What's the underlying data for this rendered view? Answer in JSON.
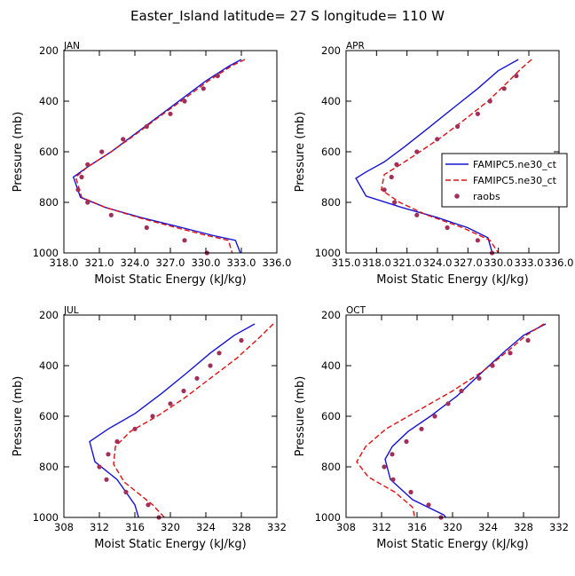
{
  "title": "Easter_Island  latitude= 27 S longitude= 110 W",
  "colors": {
    "model1": "#1414d2",
    "model2": "#e01010",
    "obs": "#a0305a",
    "axis": "#000000"
  },
  "legend": {
    "panel": "APR",
    "entries": [
      {
        "label": "FAMIPC5.ne30_ct",
        "style": "solid",
        "color": "#1414d2"
      },
      {
        "label": "FAMIPC5.ne30_ct",
        "style": "dashed",
        "color": "#e01010"
      },
      {
        "label": "raobs",
        "style": "dot",
        "color": "#a0305a"
      }
    ]
  },
  "chart_data": [
    {
      "type": "line",
      "panel": "JAN",
      "xlabel": "Moist Static Energy (kJ/kg)",
      "ylabel": "Pressure (mb)",
      "xlim": [
        318,
        336
      ],
      "ylim": [
        1000,
        200
      ],
      "xticks": [
        318,
        321,
        324,
        327,
        330,
        333,
        336
      ],
      "xtick_labels": [
        "318.0",
        "321.0",
        "324.0",
        "327.0",
        "330.0",
        "333.0",
        "336.0"
      ],
      "yticks": [
        200,
        400,
        600,
        800,
        1000
      ],
      "ytick_labels": [
        "200",
        "400",
        "600",
        "800",
        "1000"
      ],
      "series": [
        {
          "name": "FAMIPC5.ne30_ct",
          "style": "solid",
          "x": [
            333.0,
            332.0,
            330.0,
            328.0,
            326.0,
            324.0,
            322.0,
            320.0,
            318.8,
            319.4,
            321.5,
            324.5,
            328.0,
            330.5,
            332.5,
            333.0
          ],
          "y": [
            235,
            260,
            320,
            390,
            460,
            530,
            600,
            660,
            700,
            780,
            820,
            860,
            900,
            930,
            950,
            1010
          ]
        },
        {
          "name": "FAMIPC5.ne30_ct",
          "style": "dashed",
          "x": [
            333.3,
            332.2,
            330.2,
            328.2,
            326.1,
            324.1,
            322.0,
            320.0,
            319.0,
            319.5,
            321.5,
            324.3,
            327.5,
            330.0,
            331.9,
            332.3
          ],
          "y": [
            235,
            260,
            320,
            390,
            460,
            530,
            600,
            660,
            700,
            780,
            820,
            860,
            900,
            930,
            950,
            1010
          ]
        },
        {
          "name": "raobs",
          "style": "dot",
          "x": [
            331.0,
            329.8,
            328.2,
            327.0,
            325.0,
            323.0,
            321.2,
            320.0,
            319.5,
            319.2,
            320.0,
            322.0,
            325.0,
            328.2,
            330.1
          ],
          "y": [
            300,
            350,
            400,
            450,
            500,
            550,
            600,
            650,
            700,
            750,
            800,
            850,
            900,
            950,
            1000
          ]
        }
      ]
    },
    {
      "type": "line",
      "panel": "APR",
      "xlabel": "Moist Static Energy (kJ/kg)",
      "ylabel": "Pressure (mb)",
      "xlim": [
        315.03,
        336
      ],
      "ylim": [
        1000,
        200
      ],
      "xticks": [
        315.03,
        318.03,
        321.03,
        324.03,
        327.03,
        330.03,
        333.03,
        336.0
      ],
      "xtick_labels": [
        "315.0",
        "318.0",
        "321.0",
        "324.0",
        "327.0",
        "330.0",
        "333.0",
        "336.0"
      ],
      "yticks": [
        200,
        400,
        600,
        800,
        1000
      ],
      "ytick_labels": [
        "200",
        "400",
        "600",
        "800",
        "1000"
      ],
      "series": [
        {
          "name": "FAMIPC5.ne30_ct",
          "style": "solid",
          "x": [
            332.0,
            330.0,
            328.0,
            325.5,
            323.0,
            320.8,
            318.8,
            317.0,
            316.0,
            317.0,
            320.5,
            324.0,
            327.0,
            329.0,
            329.5
          ],
          "y": [
            235,
            280,
            350,
            430,
            510,
            580,
            640,
            680,
            705,
            775,
            820,
            860,
            900,
            940,
            1010
          ]
        },
        {
          "name": "FAMIPC5.ne30_ct",
          "style": "dashed",
          "x": [
            333.3,
            332.3,
            330.8,
            329.0,
            326.8,
            324.5,
            322.3,
            320.4,
            318.8,
            318.5,
            320.3,
            323.0,
            326.5,
            329.2,
            330.2
          ],
          "y": [
            235,
            270,
            330,
            400,
            470,
            540,
            600,
            650,
            690,
            750,
            800,
            850,
            900,
            950,
            1010
          ]
        },
        {
          "name": "raobs",
          "style": "dot",
          "x": [
            331.8,
            330.6,
            329.2,
            328.0,
            326.0,
            324.0,
            322.0,
            320.0,
            319.5,
            318.8,
            319.8,
            322.0,
            325.0,
            328.0,
            329.4
          ],
          "y": [
            300,
            350,
            400,
            450,
            500,
            550,
            600,
            650,
            700,
            750,
            800,
            850,
            900,
            950,
            1000
          ]
        }
      ]
    },
    {
      "type": "line",
      "panel": "JUL",
      "xlabel": "Moist Static Energy (kJ/kg)",
      "ylabel": "Pressure (mb)",
      "xlim": [
        308,
        332
      ],
      "ylim": [
        1000,
        200
      ],
      "xticks": [
        308,
        312,
        316,
        320,
        324,
        328,
        332
      ],
      "xtick_labels": [
        "308",
        "312",
        "316",
        "320",
        "324",
        "328",
        "332"
      ],
      "yticks": [
        200,
        400,
        600,
        800,
        1000
      ],
      "ytick_labels": [
        "200",
        "400",
        "600",
        "800",
        "1000"
      ],
      "series": [
        {
          "name": "FAMIPC5.ne30_ct",
          "style": "solid",
          "x": [
            329.5,
            327.2,
            324.5,
            321.8,
            319.0,
            316.0,
            313.0,
            310.9,
            311.5,
            314.0,
            316.0,
            316.5
          ],
          "y": [
            235,
            280,
            350,
            430,
            510,
            590,
            650,
            700,
            780,
            850,
            950,
            1010
          ]
        },
        {
          "name": "FAMIPC5.ne30_ct",
          "style": "dashed",
          "x": [
            331.6,
            330.0,
            327.5,
            324.5,
            321.5,
            318.5,
            315.5,
            313.8,
            313.6,
            314.8,
            318.0,
            319.6
          ],
          "y": [
            235,
            290,
            370,
            450,
            530,
            600,
            660,
            720,
            790,
            860,
            950,
            1010
          ]
        },
        {
          "name": "raobs",
          "style": "dot",
          "x": [
            328.0,
            325.5,
            324.5,
            323.0,
            321.5,
            320.0,
            318.0,
            316.0,
            314.0,
            313.0,
            312.0,
            312.8,
            315.0,
            317.5,
            318.7
          ],
          "y": [
            300,
            350,
            400,
            450,
            500,
            550,
            600,
            650,
            700,
            750,
            800,
            850,
            900,
            950,
            1000
          ]
        }
      ]
    },
    {
      "type": "line",
      "panel": "OCT",
      "xlabel": "Moist Static Energy (kJ/kg)",
      "ylabel": "Pressure (mb)",
      "xlim": [
        308,
        332
      ],
      "ylim": [
        1000,
        200
      ],
      "xticks": [
        308,
        312,
        316,
        320,
        324,
        328,
        332
      ],
      "xtick_labels": [
        "308",
        "312",
        "316",
        "320",
        "324",
        "328",
        "332"
      ],
      "yticks": [
        200,
        400,
        600,
        800,
        1000
      ],
      "ytick_labels": [
        "200",
        "400",
        "600",
        "800",
        "1000"
      ],
      "series": [
        {
          "name": "FAMIPC5.ne30_ct",
          "style": "solid",
          "x": [
            330.5,
            328.0,
            326.0,
            323.5,
            320.5,
            317.5,
            315.0,
            313.2,
            312.4,
            313.0,
            315.5,
            319.0,
            319.5
          ],
          "y": [
            235,
            280,
            340,
            420,
            520,
            600,
            660,
            720,
            770,
            850,
            930,
            990,
            1010
          ]
        },
        {
          "name": "FAMIPC5.ne30_ct",
          "style": "dashed",
          "x": [
            330.3,
            328.3,
            326.3,
            323.5,
            320.0,
            316.0,
            312.5,
            310.2,
            309.2,
            310.5,
            313.5,
            315.5,
            315.8
          ],
          "y": [
            235,
            280,
            340,
            420,
            500,
            580,
            650,
            720,
            780,
            840,
            900,
            960,
            1010
          ]
        },
        {
          "name": "raobs",
          "style": "dot",
          "x": [
            328.5,
            326.5,
            324.5,
            323.0,
            321.0,
            319.5,
            318.0,
            316.5,
            314.8,
            313.2,
            312.3,
            313.3,
            315.3,
            317.3,
            318.7
          ],
          "y": [
            300,
            350,
            400,
            450,
            500,
            550,
            600,
            650,
            700,
            750,
            800,
            850,
            900,
            950,
            1000
          ]
        }
      ]
    }
  ]
}
